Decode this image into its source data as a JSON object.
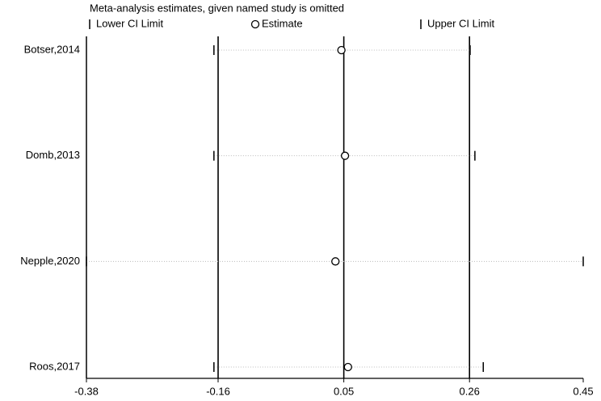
{
  "chart_data": {
    "type": "sensitivity",
    "title": "Meta-analysis estimates, given named study is omitted",
    "categories": [
      "Botser,2014",
      "Domb,2013",
      "Nepple,2020",
      "Roos,2017"
    ],
    "series": [
      {
        "name": "Lower CI Limit",
        "color": "#000000",
        "values": [
          -0.167,
          -0.167,
          -0.38,
          -0.167
        ]
      },
      {
        "name": "Estimate",
        "color": "#000000",
        "values": [
          0.046,
          0.052,
          0.036,
          0.057
        ]
      },
      {
        "name": "Upper CI Limit",
        "color": "#000000",
        "values": [
          0.261,
          0.269,
          0.45,
          0.283
        ]
      }
    ],
    "overall": [
      -0.16,
      0.05,
      0.26
    ],
    "xlim": [
      -0.38,
      0.45
    ],
    "xticks": [
      -0.38,
      -0.16,
      0.05,
      0.26,
      0.45
    ]
  }
}
